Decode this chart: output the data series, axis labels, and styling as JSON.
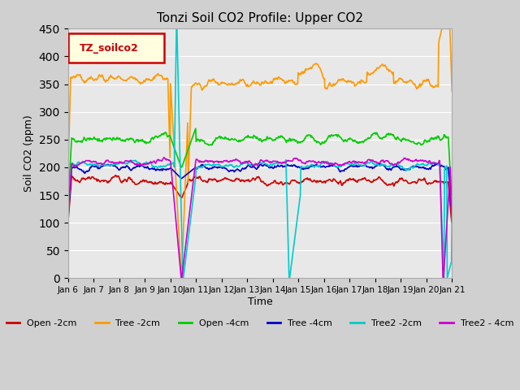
{
  "title": "Tonzi Soil CO2 Profile: Upper CO2",
  "ylabel": "Soil CO2 (ppm)",
  "xlabel": "Time",
  "ylim": [
    0,
    450
  ],
  "legend_label": "TZ_soilco2",
  "series_colors": {
    "Open -2cm": "#cc0000",
    "Tree -2cm": "#ff9900",
    "Open -4cm": "#00cc00",
    "Tree -4cm": "#0000cc",
    "Tree2 -2cm": "#00cccc",
    "Tree2 - 4cm": "#cc00cc"
  },
  "tick_labels": [
    "Jan 6",
    "Jan 7",
    "Jan 8",
    "Jan 9",
    "Jan 10",
    "Jan 11",
    "Jan 12",
    "Jan 13",
    "Jan 14",
    "Jan 15",
    "Jan 16",
    "Jan 17",
    "Jan 18",
    "Jan 19",
    "Jan 20",
    "Jan 21"
  ],
  "seed": 42
}
